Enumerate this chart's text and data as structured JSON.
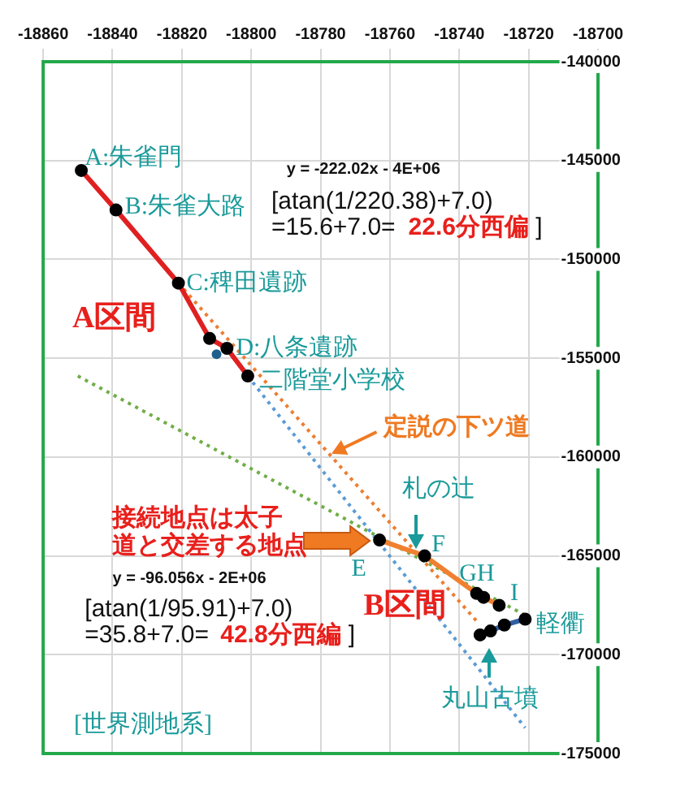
{
  "chart_data": {
    "type": "scatter",
    "xlim": [
      -18860,
      -18700
    ],
    "xticks": [
      -18860,
      -18840,
      -18820,
      -18800,
      -18780,
      -18760,
      -18740,
      -18720,
      -18700
    ],
    "ylim": [
      -175000,
      -140000
    ],
    "yticks": [
      -175000,
      -170000,
      -165000,
      -160000,
      -155000,
      -150000,
      -145000,
      -140000
    ],
    "grid": true,
    "legend": false,
    "series": [
      {
        "type": "line",
        "color": "#e02020",
        "marker": "circle",
        "line_style": "solid",
        "x": [
          -18849,
          -18839,
          -18821,
          -18812,
          -18807,
          -18801
        ],
        "values": [
          -145500,
          -147500,
          -151200,
          -154000,
          -154500,
          -155900
        ]
      },
      {
        "type": "scatter",
        "color": "#1f5f8b",
        "marker": "circle",
        "x": [
          -18810
        ],
        "values": [
          -154800
        ]
      },
      {
        "type": "line",
        "color": "#f08030",
        "marker": "circle",
        "line_style": "solid",
        "x": [
          -18763,
          -18750,
          -18735,
          -18733,
          -18728.5
        ],
        "values": [
          -164200,
          -165000,
          -166900,
          -167100,
          -167500
        ]
      },
      {
        "type": "line",
        "color": "#3060a0",
        "marker": "circle",
        "line_style": "solid",
        "x": [
          -18734,
          -18731,
          -18727,
          -18721
        ],
        "values": [
          -169000,
          -168800,
          -168500,
          -168200
        ]
      },
      {
        "type": "line",
        "color": "#5b9bd5",
        "marker": "none",
        "line_style": "dotted",
        "x": [
          -18801,
          -18721
        ],
        "values": [
          -155900,
          -173700
        ]
      },
      {
        "type": "line",
        "color": "#ed7d31",
        "marker": "none",
        "line_style": "dotted",
        "x": [
          -18821,
          -18735
        ],
        "values": [
          -151200,
          -168300
        ]
      },
      {
        "type": "line",
        "color": "#70ad47",
        "marker": "none",
        "line_style": "dotted",
        "x": [
          -18850,
          -18721
        ],
        "values": [
          -155900,
          -168000
        ]
      }
    ],
    "annotations": [
      {
        "text": "A:朱雀門",
        "x": -18848,
        "y": -144940
      },
      {
        "text": "B:朱雀大路",
        "x": -18836.4,
        "y": -147410
      },
      {
        "text": "C:稗田遺跡",
        "x": -18818.7,
        "y": -151230
      },
      "A区間",
      {
        "text": "D:八条遺跡",
        "x": -18804.4,
        "y": -154520
      },
      {
        "text": "二階堂小学校",
        "x": -18797.8,
        "y": -156170
      },
      "y = -222.02x - 4E+06",
      "[atan(1/220.38)+7.0)",
      "=15.6+7.0=",
      "22.6分西偏",
      "]",
      "定説の下ツ道",
      "札の辻",
      "接続地点は太子",
      "道と交差する地点",
      "E",
      {
        "text": "F",
        "x": -18748,
        "y": -164480
      },
      {
        "text": "GH",
        "x": -18740,
        "y": -165970
      },
      "I",
      "B区間",
      "軽衢",
      "丸山古墳",
      "y = -96.056x - 2E+06",
      "[atan(1/95.91)+7.0)",
      "=35.8+7.0=",
      "42.8分西編",
      "]",
      "[世界測地系]"
    ]
  }
}
